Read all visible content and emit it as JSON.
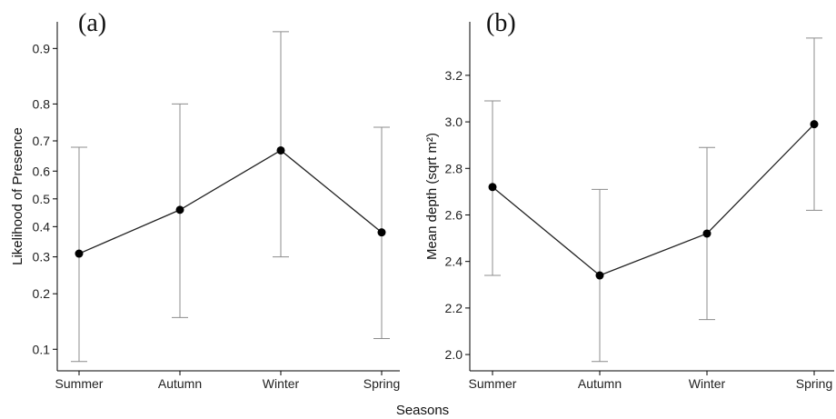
{
  "figure": {
    "xlabel": "Seasons"
  },
  "chart_data": [
    {
      "type": "line",
      "panel_label": "(a)",
      "title": "",
      "xlabel": "",
      "ylabel": "Likelihood of Presence",
      "yscale": "logit",
      "categories": [
        "Summer",
        "Autumn",
        "Winter",
        "Spring"
      ],
      "values": [
        0.31,
        0.46,
        0.67,
        0.38
      ],
      "error_low": [
        0.085,
        0.15,
        0.3,
        0.115
      ],
      "error_high": [
        0.68,
        0.8,
        0.92,
        0.74
      ],
      "ylim": [
        0.075,
        0.93
      ],
      "yticks": [
        0.1,
        0.2,
        0.3,
        0.4,
        0.5,
        0.6,
        0.7,
        0.8,
        0.9
      ],
      "ytick_labels": [
        "0.1",
        "0.2",
        "0.3",
        "0.4",
        "0.5",
        "0.6",
        "0.7",
        "0.8",
        "0.9"
      ],
      "grid": false,
      "colors": {
        "line": "#222222",
        "point": "#000000",
        "error": "#8c8c8c"
      }
    },
    {
      "type": "line",
      "panel_label": "(b)",
      "title": "",
      "xlabel": "",
      "ylabel": "Mean depth (sqrt m²)",
      "yscale": "linear",
      "categories": [
        "Summer",
        "Autumn",
        "Winter",
        "Spring"
      ],
      "values": [
        2.72,
        2.34,
        2.52,
        2.99
      ],
      "error_low": [
        2.34,
        1.97,
        2.15,
        2.62
      ],
      "error_high": [
        3.09,
        2.71,
        2.89,
        3.36
      ],
      "ylim": [
        1.93,
        3.43
      ],
      "yticks": [
        2.0,
        2.2,
        2.4,
        2.6,
        2.8,
        3.0,
        3.2
      ],
      "ytick_labels": [
        "2.0",
        "2.2",
        "2.4",
        "2.6",
        "2.8",
        "3.0",
        "3.2"
      ],
      "grid": false,
      "colors": {
        "line": "#222222",
        "point": "#000000",
        "error": "#8c8c8c"
      }
    }
  ]
}
